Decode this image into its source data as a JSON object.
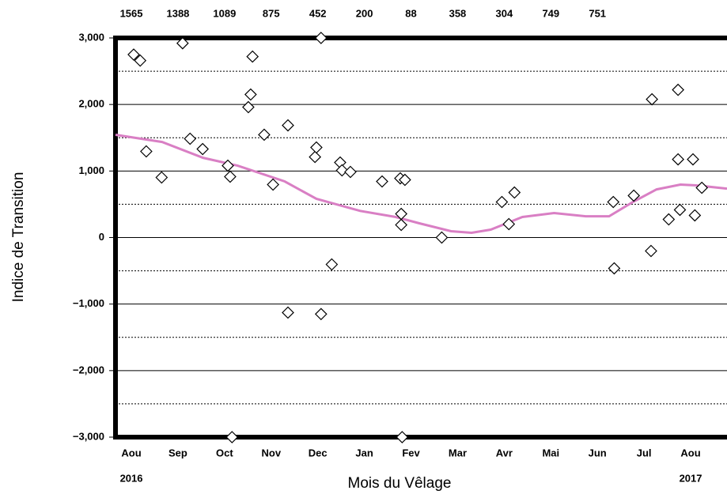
{
  "chart_data": {
    "type": "scatter",
    "x_label": "Mois du Vêlage",
    "y_label": "Indice de Transition",
    "xlim": [
      -0.34,
      12.78
    ],
    "ylim": [
      -3000,
      3000
    ],
    "xticks": [
      {
        "value": 0,
        "label": "Aou"
      },
      {
        "value": 1,
        "label": "Sep"
      },
      {
        "value": 2,
        "label": "Oct"
      },
      {
        "value": 3,
        "label": "Nov"
      },
      {
        "value": 4,
        "label": "Dec"
      },
      {
        "value": 5,
        "label": "Jan"
      },
      {
        "value": 6,
        "label": "Fev"
      },
      {
        "value": 7,
        "label": "Mar"
      },
      {
        "value": 8,
        "label": "Avr"
      },
      {
        "value": 9,
        "label": "Mai"
      },
      {
        "value": 10,
        "label": "Jun"
      },
      {
        "value": 11,
        "label": "Jul"
      },
      {
        "value": 12,
        "label": "Aou"
      }
    ],
    "year_labels": [
      {
        "value": 0,
        "label": "2016"
      },
      {
        "value": 12,
        "label": "2017"
      }
    ],
    "counts": [
      1565,
      1388,
      1089,
      875,
      452,
      200,
      88,
      358,
      304,
      749,
      751
    ],
    "yticks": [
      {
        "value": -3000,
        "label": "−3,000"
      },
      {
        "value": -2000,
        "label": "−2,000"
      },
      {
        "value": -1000,
        "label": "−1,000"
      },
      0,
      {
        "value": 1000,
        "label": "1,000"
      },
      {
        "value": 2000,
        "label": "2,000"
      },
      {
        "value": 3000,
        "label": "3,000"
      }
    ],
    "minor_yticks": [
      -2500,
      -1500,
      -500,
      500,
      1500,
      2500
    ],
    "grid": true,
    "points": {
      "x": [
        0.05,
        0.19,
        0.32,
        0.65,
        1.1,
        1.26,
        1.53,
        2.07,
        2.12,
        2.16,
        2.51,
        2.56,
        2.6,
        2.85,
        3.04,
        3.36,
        3.36,
        3.94,
        3.97,
        4.07,
        4.07,
        4.3,
        4.48,
        4.52,
        4.7,
        5.38,
        5.77,
        5.87,
        5.79,
        5.79,
        5.81,
        6.66,
        7.95,
        8.22,
        8.1,
        10.36,
        10.34,
        10.78,
        11.17,
        11.15,
        11.53,
        11.73,
        11.73,
        11.77,
        12.05,
        12.09,
        12.24
      ],
      "y": [
        2750,
        2660,
        1295,
        903,
        2920,
        1485,
        1330,
        1080,
        915,
        -3000,
        1960,
        2150,
        2720,
        1545,
        796,
        1686,
        -1128,
        1211,
        1354,
        3000,
        -1150,
        -404,
        1128,
        1010,
        986,
        843,
        890,
        867,
        356,
        190,
        -3000,
        0,
        534,
        677,
        202,
        -463,
        534,
        630,
        2078,
        -202,
        273,
        2220,
        1175,
        416,
        1175,
        333,
        748
      ]
    },
    "trend": {
      "color": "#d97fc4",
      "x": [
        -0.34,
        0.66,
        1.53,
        2.28,
        3.29,
        3.97,
        4.91,
        5.67,
        6.18,
        6.86,
        7.3,
        7.71,
        8.39,
        9.07,
        9.75,
        10.25,
        10.76,
        11.27,
        11.78,
        12.12,
        12.78
      ],
      "y": [
        1544,
        1437,
        1200,
        1080,
        843,
        582,
        400,
        309,
        214,
        95,
        71,
        119,
        309,
        368,
        320,
        320,
        534,
        724,
        796,
        784,
        736
      ]
    }
  }
}
